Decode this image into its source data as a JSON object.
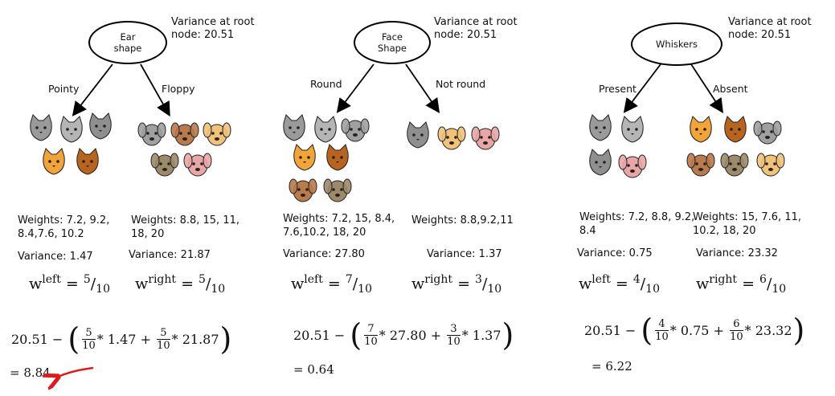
{
  "splits": [
    {
      "feature": "Ear shape",
      "root_variance": "Variance at root node: 20.51",
      "left_label": "Pointy",
      "right_label": "Floppy",
      "left_weights": "Weights: 7.2, 9.2, 8.4,7.6, 10.2",
      "right_weights": "Weights: 8.8, 15, 11, 18, 20",
      "left_variance": "Variance: 1.47",
      "right_variance": "Variance: 21.87",
      "w_left": {
        "sup": "left",
        "num": "5",
        "den": "10"
      },
      "w_right": {
        "sup": "right",
        "num": "5",
        "den": "10"
      },
      "formula": {
        "root": "20.51",
        "n1": "5",
        "d1": "10",
        "v1": "1.47",
        "n2": "5",
        "d2": "10",
        "v2": "21.87"
      },
      "result": "= 8.84"
    },
    {
      "feature": "Face Shape",
      "root_variance": "Variance at root node: 20.51",
      "left_label": "Round",
      "right_label": "Not round",
      "left_weights": "Weights: 7.2, 15, 8.4, 7.6,10.2, 18, 20",
      "right_weights": "Weights: 8.8,9.2,11",
      "left_variance": "Variance: 27.80",
      "right_variance": "Variance: 1.37",
      "w_left": {
        "sup": "left",
        "num": "7",
        "den": "10"
      },
      "w_right": {
        "sup": "right",
        "num": "3",
        "den": "10"
      },
      "formula": {
        "root": "20.51",
        "n1": "7",
        "d1": "10",
        "v1": "27.80",
        "n2": "3",
        "d2": "10",
        "v2": "1.37"
      },
      "result": "= 0.64"
    },
    {
      "feature": "Whiskers",
      "root_variance": "Variance at root node: 20.51",
      "left_label": "Present",
      "right_label": "Absent",
      "left_weights": "Weights: 7.2, 8.8, 9.2, 8.4",
      "right_weights": "Weights: 15, 7.6, 11, 10.2, 18, 20",
      "left_variance": "Variance: 0.75",
      "right_variance": "Variance: 23.32",
      "w_left": {
        "sup": "left",
        "num": "4",
        "den": "10"
      },
      "w_right": {
        "sup": "right",
        "num": "6",
        "den": "10"
      },
      "formula": {
        "root": "20.51",
        "n1": "4",
        "d1": "10",
        "v1": "0.75",
        "n2": "6",
        "d2": "10",
        "v2": "23.32"
      },
      "result": "= 6.22"
    }
  ],
  "colors": {
    "arrow": "#000000",
    "highlight_arrow": "#e01a1a",
    "gray_cat": "#9a9a9a",
    "orange_cat": "#f2a33a",
    "brown_cat": "#b8641e",
    "tan_dog": "#f0c27a",
    "brown_dog": "#b97a4c",
    "gray_dog": "#8a8a8a",
    "pink_dog": "#e9a6a6"
  }
}
